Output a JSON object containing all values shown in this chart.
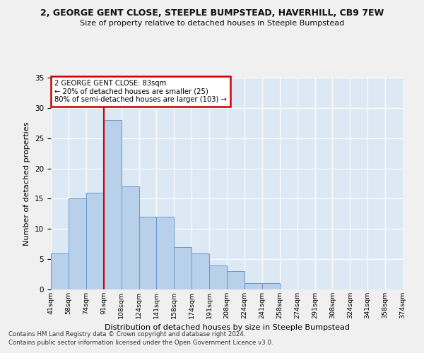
{
  "title": "2, GEORGE GENT CLOSE, STEEPLE BUMPSTEAD, HAVERHILL, CB9 7EW",
  "subtitle": "Size of property relative to detached houses in Steeple Bumpstead",
  "xlabel": "Distribution of detached houses by size in Steeple Bumpstead",
  "ylabel": "Number of detached properties",
  "bar_values": [
    6,
    15,
    16,
    28,
    17,
    12,
    12,
    7,
    6,
    4,
    3,
    1,
    1,
    0,
    0,
    0,
    0,
    0,
    0,
    0
  ],
  "bin_labels": [
    "41sqm",
    "58sqm",
    "74sqm",
    "91sqm",
    "108sqm",
    "124sqm",
    "141sqm",
    "158sqm",
    "174sqm",
    "191sqm",
    "208sqm",
    "224sqm",
    "241sqm",
    "258sqm",
    "274sqm",
    "291sqm",
    "308sqm",
    "324sqm",
    "341sqm",
    "358sqm",
    "374sqm"
  ],
  "bar_color": "#b8d0ea",
  "bar_edge_color": "#6699cc",
  "vline_color": "#cc0000",
  "annotation_text": "2 GEORGE GENT CLOSE: 83sqm\n← 20% of detached houses are smaller (25)\n80% of semi-detached houses are larger (103) →",
  "annotation_box_color": "#cc0000",
  "ylim": [
    0,
    35
  ],
  "yticks": [
    0,
    5,
    10,
    15,
    20,
    25,
    30,
    35
  ],
  "footer1": "Contains HM Land Registry data © Crown copyright and database right 2024.",
  "footer2": "Contains public sector information licensed under the Open Government Licence v3.0.",
  "bg_color": "#dce9f5",
  "grid_color": "#ffffff",
  "fig_bg_color": "#f0f0f0",
  "num_bars": 20,
  "vline_bin": 3
}
